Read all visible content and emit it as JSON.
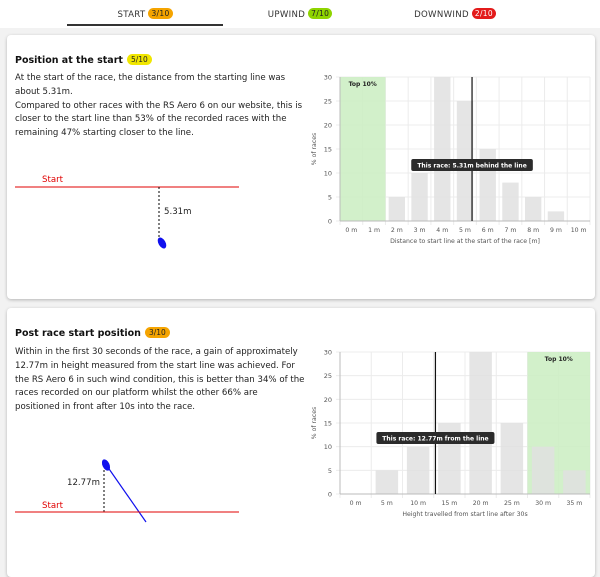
{
  "tabs": [
    {
      "label": "START",
      "badge": "3/10",
      "badge_color": "#f5a400"
    },
    {
      "label": "UPWIND",
      "badge": "7/10",
      "badge_color": "#8fd400"
    },
    {
      "label": "DOWNWIND",
      "badge": "2/10",
      "badge_color": "#e31b1b"
    }
  ],
  "start_position": {
    "title": "Position at the start",
    "badge": "5/10",
    "badge_color": "#f0e600",
    "paragraph": "At the start of the race, the distance from the starting line was about 5.31m.\nCompared to other races with the RS Aero 6 on our website, this is closer to the start line than 53% of the recorded races with the remaining 47% starting closer to the line.",
    "diagram": {
      "line_label": "Start",
      "distance_label": "5.31m",
      "line_color": "#e00000",
      "boat_color": "#1010ee"
    }
  },
  "post_start": {
    "title": "Post race start position",
    "badge": "3/10",
    "badge_color": "#f5a400",
    "paragraph": "Within in the first 30 seconds of the race, a gain of approximately 12.77m in height measured from the start line was achieved. For the RS Aero 6 in such wind condition, this is better than 34% of the races recorded on our platform whilst the other 66% are positioned in front after 10s into the race.",
    "diagram": {
      "line_label": "Start",
      "distance_label": "12.77m",
      "line_color": "#e00000",
      "boat_color": "#1010ee"
    }
  },
  "chart_data": [
    {
      "type": "bar",
      "categories": [
        "0 m",
        "1 m",
        "2 m",
        "3 m",
        "4 m",
        "5 m",
        "6 m",
        "7 m",
        "8 m",
        "9 m",
        "10 m"
      ],
      "values": [
        0,
        0,
        5,
        10,
        30,
        25,
        15,
        8,
        5,
        2,
        0
      ],
      "xlabel": "Distance to start line at the start of the race [m]",
      "ylabel": "% of races",
      "ylim": [
        0,
        30
      ],
      "yticks": [
        0,
        5,
        10,
        15,
        20,
        25,
        30
      ],
      "highlight": {
        "label": "Top 10%",
        "from": 0,
        "to": 2,
        "color": "#cdeec4"
      },
      "marker": {
        "x": 5.31,
        "label": "This race: 5.31m behind the line"
      },
      "bar_color": "#e0e0e0"
    },
    {
      "type": "bar",
      "categories": [
        "0 m",
        "5 m",
        "10 m",
        "15 m",
        "20 m",
        "25 m",
        "30 m",
        "35 m"
      ],
      "values": [
        0,
        5,
        10,
        15,
        30,
        15,
        10,
        5
      ],
      "xlabel": "Height travelled from start line after 30s",
      "ylabel": "% of races",
      "ylim": [
        0,
        30
      ],
      "yticks": [
        0,
        5,
        10,
        15,
        20,
        25,
        30
      ],
      "highlight": {
        "label": "Top 10%",
        "from": 30,
        "to": 40,
        "color": "#cdeec4"
      },
      "marker": {
        "x": 12.77,
        "label": "This race: 12.77m from the line"
      },
      "bar_color": "#e0e0e0"
    }
  ]
}
